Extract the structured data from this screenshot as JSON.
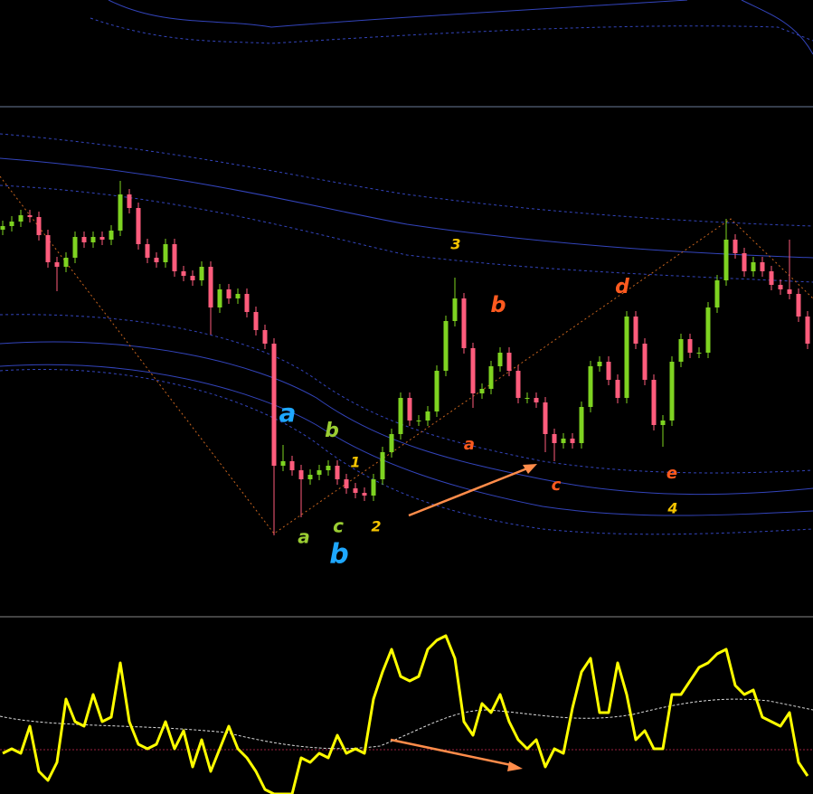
{
  "chart_data": [
    {
      "type": "candlestick",
      "ylim": [
        0,
        564
      ],
      "up_color": "#7ed321",
      "down_color": "#ff5c7c",
      "open": [
        428,
        432,
        437,
        444,
        442,
        422,
        392,
        387,
        397,
        420,
        414,
        420,
        417,
        427,
        467,
        452,
        412,
        397,
        392,
        412,
        382,
        377,
        372,
        387,
        342,
        362,
        352,
        357,
        337,
        317,
        302,
        167,
        172,
        162,
        152,
        157,
        162,
        167,
        152,
        142,
        137,
        134,
        152,
        182,
        202,
        242,
        217,
        217,
        227,
        272,
        327,
        352,
        297,
        247,
        252,
        277,
        292,
        272,
        242,
        242,
        237,
        202,
        192,
        197,
        192,
        232,
        277,
        282,
        262,
        242,
        332,
        302,
        262,
        212,
        217,
        282,
        307,
        292,
        292,
        342,
        372,
        417,
        402,
        382,
        392,
        382,
        367,
        362,
        357,
        332
      ],
      "high": [
        438,
        443,
        450,
        450,
        448,
        428,
        398,
        403,
        426,
        426,
        426,
        426,
        433,
        482,
        473,
        458,
        418,
        403,
        418,
        418,
        388,
        383,
        393,
        393,
        368,
        368,
        363,
        363,
        343,
        323,
        308,
        190,
        178,
        168,
        163,
        168,
        173,
        173,
        158,
        148,
        143,
        158,
        188,
        208,
        248,
        248,
        223,
        233,
        278,
        333,
        375,
        358,
        303,
        258,
        283,
        298,
        298,
        278,
        248,
        248,
        243,
        208,
        203,
        203,
        238,
        283,
        288,
        288,
        268,
        338,
        338,
        308,
        268,
        223,
        288,
        313,
        313,
        298,
        348,
        378,
        440,
        423,
        408,
        398,
        398,
        388,
        373,
        417,
        363,
        338
      ],
      "low": [
        422,
        426,
        431,
        436,
        416,
        386,
        360,
        381,
        391,
        408,
        408,
        411,
        411,
        421,
        446,
        406,
        391,
        386,
        386,
        376,
        371,
        366,
        366,
        312,
        336,
        346,
        346,
        331,
        311,
        296,
        90,
        161,
        156,
        110,
        146,
        151,
        156,
        146,
        136,
        131,
        128,
        128,
        146,
        176,
        196,
        211,
        211,
        211,
        221,
        266,
        321,
        291,
        231,
        241,
        246,
        271,
        266,
        236,
        236,
        231,
        182,
        172,
        186,
        186,
        186,
        226,
        271,
        256,
        236,
        236,
        296,
        256,
        206,
        188,
        211,
        276,
        286,
        286,
        286,
        336,
        366,
        396,
        376,
        376,
        376,
        361,
        356,
        351,
        326,
        296
      ],
      "close": [
        432,
        437,
        444,
        442,
        422,
        392,
        387,
        397,
        420,
        414,
        420,
        417,
        427,
        467,
        452,
        412,
        397,
        392,
        412,
        382,
        377,
        372,
        387,
        342,
        362,
        352,
        357,
        337,
        317,
        302,
        167,
        172,
        162,
        152,
        157,
        162,
        167,
        152,
        142,
        137,
        134,
        152,
        182,
        202,
        242,
        217,
        217,
        227,
        272,
        327,
        352,
        297,
        247,
        252,
        277,
        292,
        272,
        242,
        242,
        237,
        202,
        192,
        197,
        192,
        232,
        277,
        282,
        262,
        242,
        332,
        302,
        262,
        212,
        217,
        282,
        307,
        292,
        292,
        342,
        372,
        417,
        402,
        382,
        392,
        382,
        367,
        362,
        357,
        332,
        302
      ],
      "annotations": [
        {
          "text": "a",
          "color": "#1ea7ff"
        },
        {
          "text": "b",
          "color": "#9acd32"
        },
        {
          "text": "1",
          "color": "#f5c400"
        },
        {
          "text": "a",
          "color": "#9acd32"
        },
        {
          "text": "c",
          "color": "#9acd32"
        },
        {
          "text": "b",
          "color": "#1ea7ff"
        },
        {
          "text": "2",
          "color": "#f5c400"
        },
        {
          "text": "3",
          "color": "#f5c400"
        },
        {
          "text": "b",
          "color": "#ff5a1f"
        },
        {
          "text": "a",
          "color": "#ff5a1f"
        },
        {
          "text": "c",
          "color": "#ff5a1f"
        },
        {
          "text": "d",
          "color": "#ff5a1f"
        },
        {
          "text": "e",
          "color": "#ff5a1f"
        },
        {
          "text": "4",
          "color": "#f5c400"
        }
      ]
    },
    {
      "type": "line",
      "ylim": [
        -2,
        194
      ],
      "series": [
        {
          "color": "#ffff00",
          "values": [
            43,
            48,
            43,
            73,
            23,
            13,
            33,
            103,
            78,
            73,
            108,
            78,
            83,
            143,
            78,
            53,
            48,
            53,
            78,
            48,
            68,
            28,
            58,
            23,
            48,
            73,
            48,
            38,
            23,
            3,
            -2,
            -2,
            -2,
            38,
            33,
            43,
            38,
            63,
            43,
            48,
            43,
            103,
            133,
            158,
            128,
            123,
            128,
            158,
            168,
            173,
            148,
            78,
            63,
            98,
            88,
            108,
            78,
            58,
            48,
            58,
            28,
            48,
            43,
            93,
            133,
            148,
            88,
            88,
            143,
            108,
            58,
            68,
            48,
            48,
            108,
            108,
            123,
            138,
            143,
            153,
            158,
            118,
            108,
            113,
            83,
            78,
            73,
            88,
            33,
            18
          ]
        }
      ]
    }
  ]
}
